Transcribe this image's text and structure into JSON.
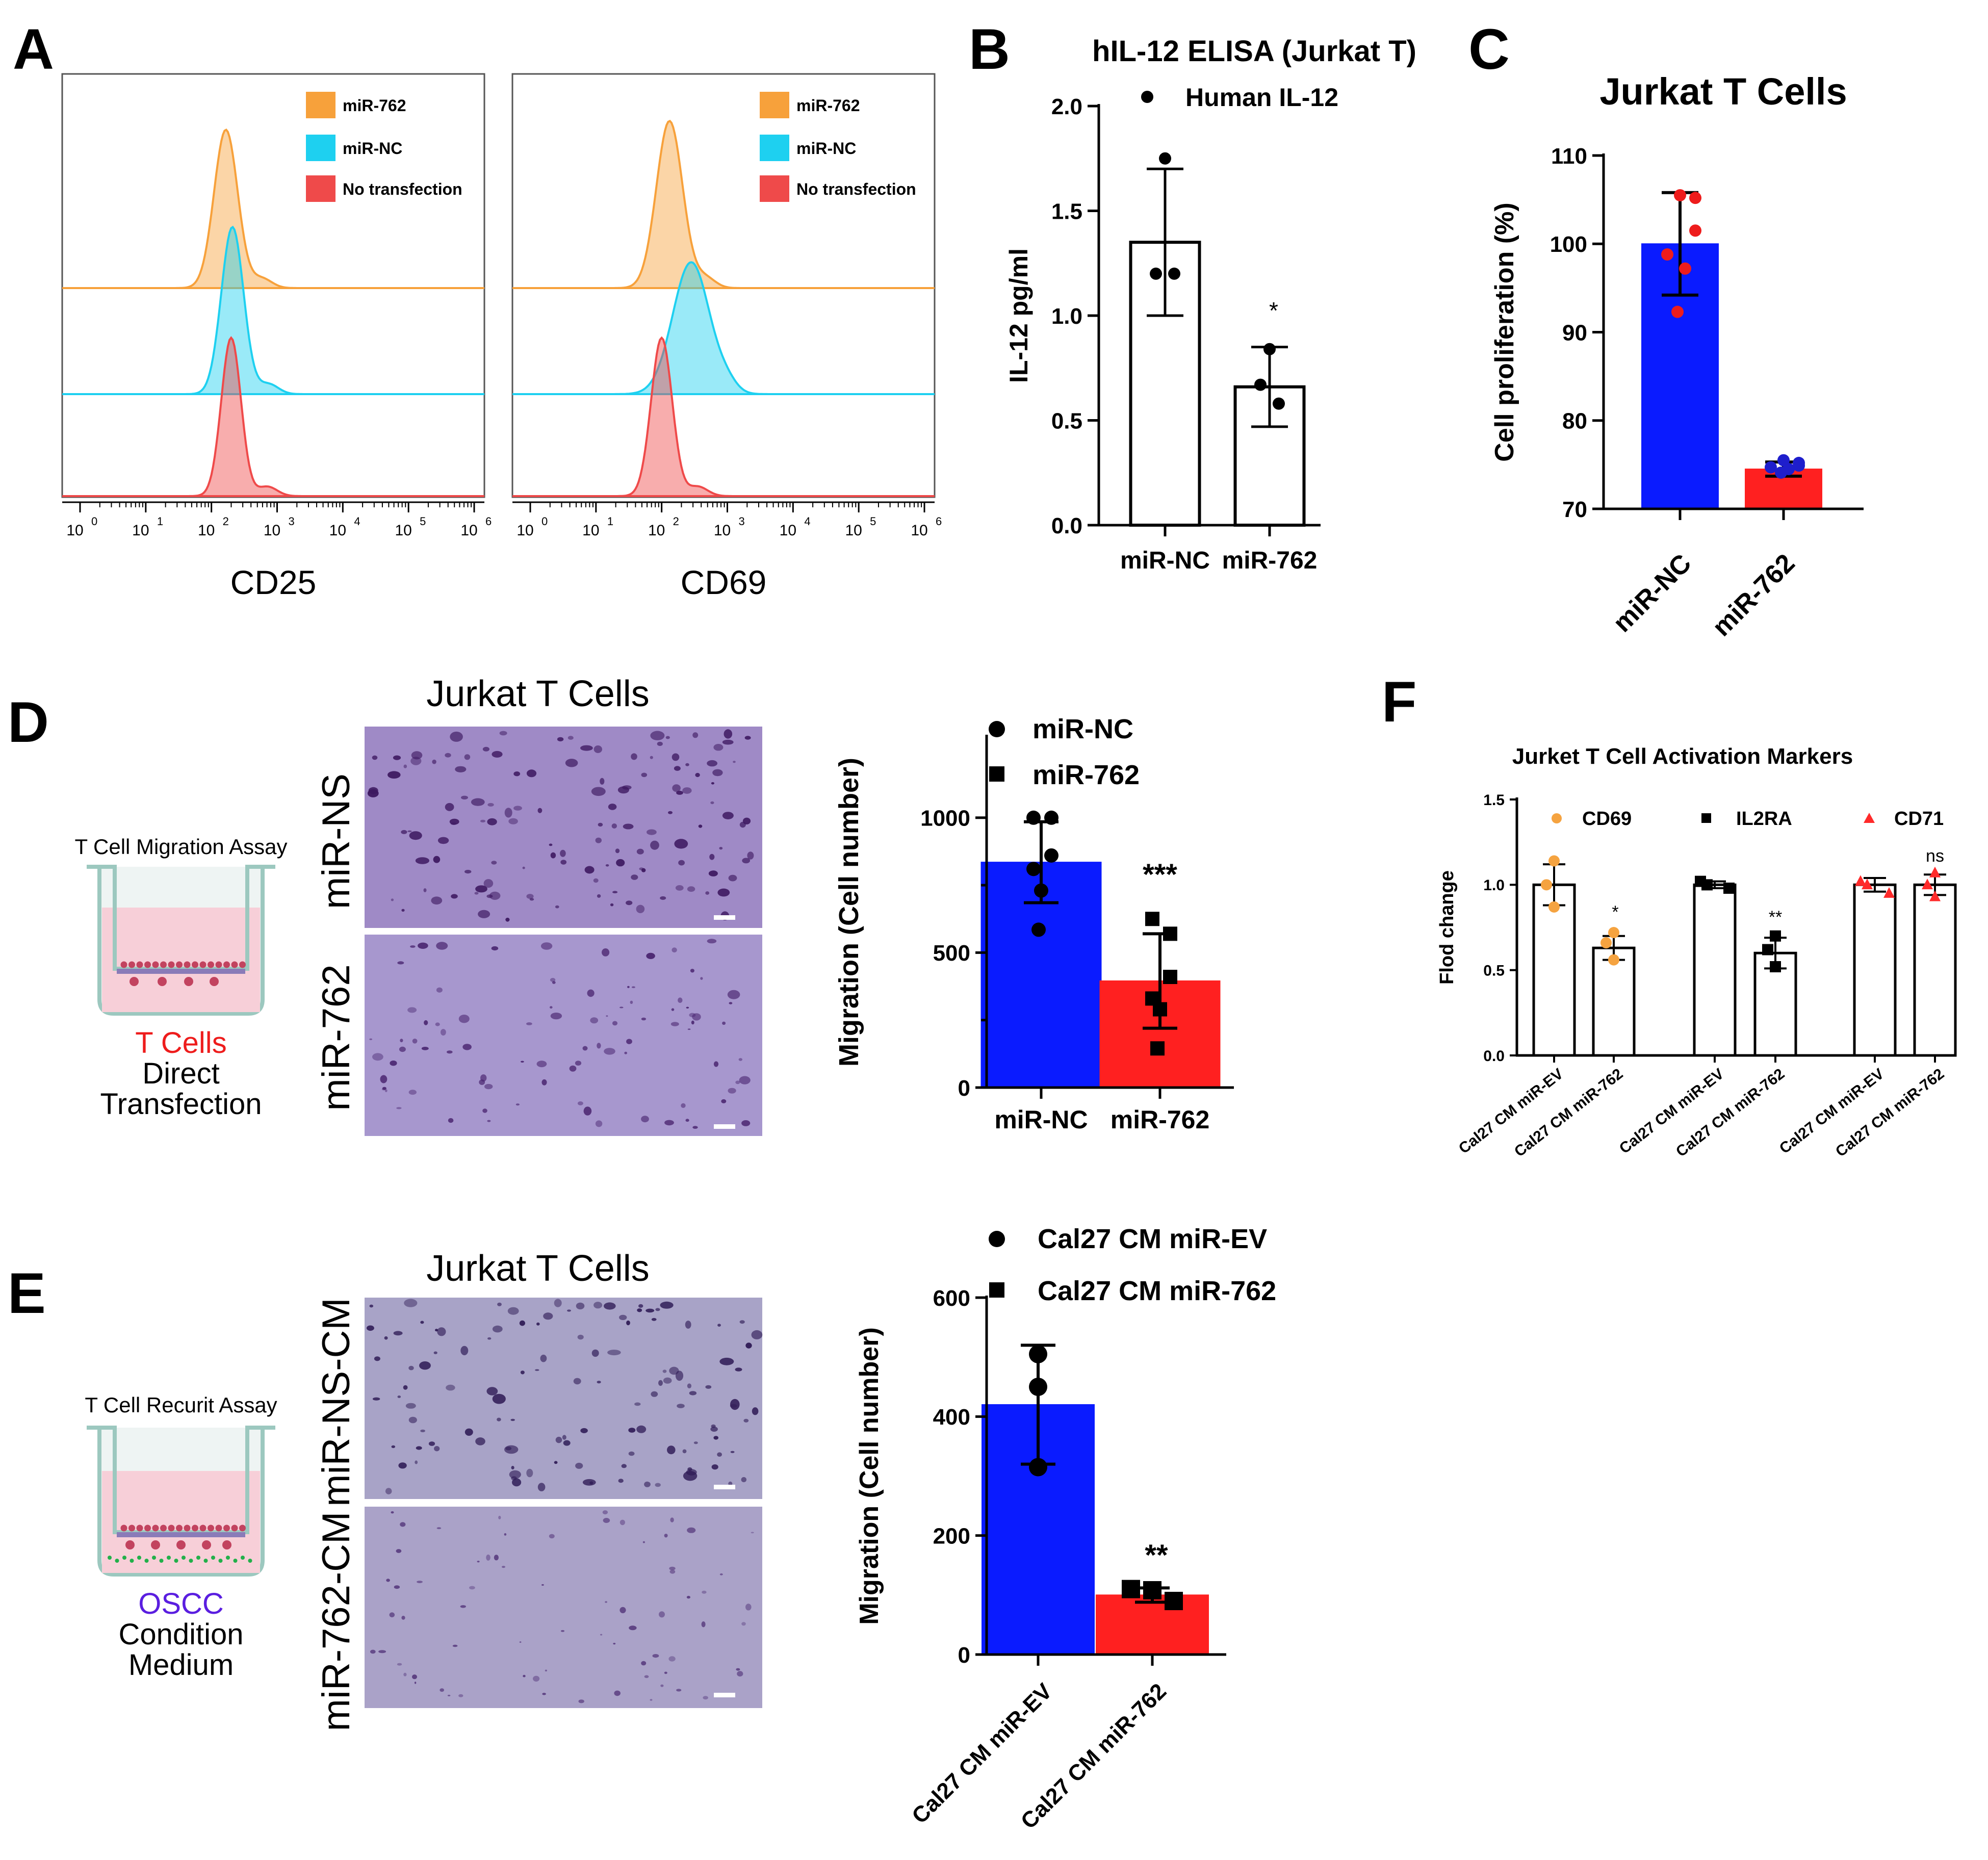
{
  "colors": {
    "orange": "#f7a13b",
    "cyan": "#1ed0f0",
    "red_hist": "#ef4a4a",
    "blue_bar": "#0a1bff",
    "red_bar": "#ff2020",
    "orange_pt": "#f5a340",
    "red_pt": "#ff2a2a",
    "dot_red": "#ee1c1c",
    "dot_blue": "#1e1ecc",
    "purple": "#5a1ee0",
    "micro_a": "#9f8ac6",
    "micro_b": "#a797ce",
    "micro_c": "#a8a3c7",
    "micro_d": "#aaa2c8"
  },
  "panel_labels": [
    "A",
    "B",
    "C",
    "D",
    "E",
    "F"
  ],
  "panel_a": {
    "legend": [
      "miR-762",
      "miR-NC",
      "No transfection"
    ],
    "x_ticks_base": [
      "10",
      "10",
      "10",
      "10",
      "10",
      "10",
      "10"
    ],
    "x_ticks_exp": [
      "0",
      "1",
      "2",
      "3",
      "4",
      "5",
      "6"
    ],
    "plots": [
      {
        "xlabel": "CD25",
        "series": [
          {
            "name": "miR-762",
            "log_peak": 2.22,
            "width": 0.18,
            "height": 0.9
          },
          {
            "name": "miR-NC",
            "log_peak": 2.32,
            "width": 0.17,
            "height": 0.95
          },
          {
            "name": "No transfection",
            "log_peak": 2.3,
            "width": 0.15,
            "height": 0.9
          }
        ]
      },
      {
        "xlabel": "CD69",
        "series": [
          {
            "name": "miR-762",
            "log_peak": 2.12,
            "width": 0.2,
            "height": 0.95
          },
          {
            "name": "miR-NC",
            "log_peak": 2.45,
            "width": 0.28,
            "height": 0.75
          },
          {
            "name": "No transfection",
            "log_peak": 2.0,
            "width": 0.16,
            "height": 0.9
          }
        ]
      }
    ]
  },
  "chart_data": [
    {
      "panel": "B",
      "type": "bar",
      "title": "hIL-12 ELISA (Jurkat T)",
      "categories": [
        "miR-NC",
        "miR-762"
      ],
      "values": [
        1.35,
        0.66
      ],
      "errors": [
        0.35,
        0.19
      ],
      "points": [
        [
          1.75,
          1.2,
          1.2
        ],
        [
          0.84,
          0.67,
          0.58
        ]
      ],
      "legend": [
        "Human IL-12"
      ],
      "ylabel": "IL-12 pg/ml",
      "ylim": [
        0,
        2.0
      ],
      "yticks": [
        "0.0",
        "0.5",
        "1.0",
        "1.5",
        "2.0"
      ],
      "annotations": [
        "*"
      ]
    },
    {
      "panel": "C",
      "type": "bar",
      "title": "Jurkat T Cells",
      "categories": [
        "miR-NC",
        "miR-762"
      ],
      "values": [
        100,
        74.5
      ],
      "errors": [
        5.8,
        0.8
      ],
      "points": [
        [
          105.5,
          105.2,
          101.5,
          98.8,
          97.2,
          92.3
        ],
        [
          75.5,
          75.2,
          74.9,
          74.7,
          74.5,
          74.1
        ]
      ],
      "ylabel": "Cell proliferation (%)",
      "ylim": [
        70,
        110
      ],
      "yticks": [
        "70",
        "80",
        "90",
        "100",
        "110"
      ]
    },
    {
      "panel": "D",
      "type": "bar",
      "title": "",
      "categories": [
        "miR-NC",
        "miR-762"
      ],
      "values": [
        835,
        395
      ],
      "errors": [
        150,
        175
      ],
      "points": [
        [
          1000,
          1000,
          860,
          810,
          730,
          585
        ],
        [
          625,
          570,
          410,
          330,
          290,
          145
        ]
      ],
      "legend": [
        "miR-NC",
        "miR-762"
      ],
      "ylabel": "Migration (Cell number)",
      "ylim": [
        0,
        1300
      ],
      "yticks": [
        "0",
        "500",
        "1000"
      ],
      "annotations": [
        "***"
      ]
    },
    {
      "panel": "E",
      "type": "bar",
      "title": "",
      "categories": [
        "Cal27 CM miR-EV",
        "Cal27 CM miR-762"
      ],
      "values": [
        420,
        100
      ],
      "errors": [
        100,
        12
      ],
      "points": [
        [
          505,
          450,
          315
        ],
        [
          110,
          108,
          90
        ]
      ],
      "legend": [
        "Cal27 CM miR-EV",
        "Cal27 CM miR-762"
      ],
      "ylabel": "Migration (Cell number)",
      "ylim": [
        0,
        600
      ],
      "yticks": [
        "0",
        "200",
        "400",
        "600"
      ],
      "annotations": [
        "**"
      ]
    },
    {
      "panel": "F",
      "type": "bar",
      "title": "Jurket T Cell Activation Markers",
      "categories": [
        "Cal27 CM miR-EV",
        "Cal27 CM miR-762",
        "Cal27 CM miR-EV",
        "Cal27 CM miR-762",
        "Cal27 CM miR-EV",
        "Cal27 CM miR-762"
      ],
      "groups": [
        "CD69",
        "IL2RA",
        "CD71"
      ],
      "values": [
        1.0,
        0.63,
        1.0,
        0.6,
        1.0,
        1.0
      ],
      "errors": [
        0.12,
        0.07,
        0.02,
        0.09,
        0.04,
        0.06
      ],
      "points": [
        [
          1.14,
          1.0,
          0.87
        ],
        [
          0.72,
          0.66,
          0.56
        ],
        [
          1.02,
          1.0,
          0.98
        ],
        [
          0.7,
          0.62,
          0.52
        ],
        [
          1.02,
          1.0,
          0.95
        ],
        [
          1.07,
          1.0,
          0.93
        ]
      ],
      "legend": [
        "CD69",
        "IL2RA",
        "CD71"
      ],
      "ylabel": "Flod change",
      "ylim": [
        0,
        1.5
      ],
      "yticks": [
        "0.0",
        "0.5",
        "1.0",
        "1.5"
      ],
      "annotations": [
        "*",
        "**",
        "ns"
      ]
    }
  ],
  "panel_d": {
    "title": "Jurkat T Cells",
    "assay_label": "T Cell Migration Assay",
    "cells_label": "T Cells",
    "caption_1": "Direct",
    "caption_2": "Transfection",
    "row_labels": [
      "miR-NS",
      "miR-762"
    ]
  },
  "panel_e": {
    "title": "Jurkat T Cells",
    "assay_label": "T Cell Recurit Assay",
    "cells_label": "OSCC",
    "caption_1": "Condition",
    "caption_2": "Medium",
    "row_labels": [
      "miR-NS-CM",
      "miR-762-CM"
    ]
  }
}
